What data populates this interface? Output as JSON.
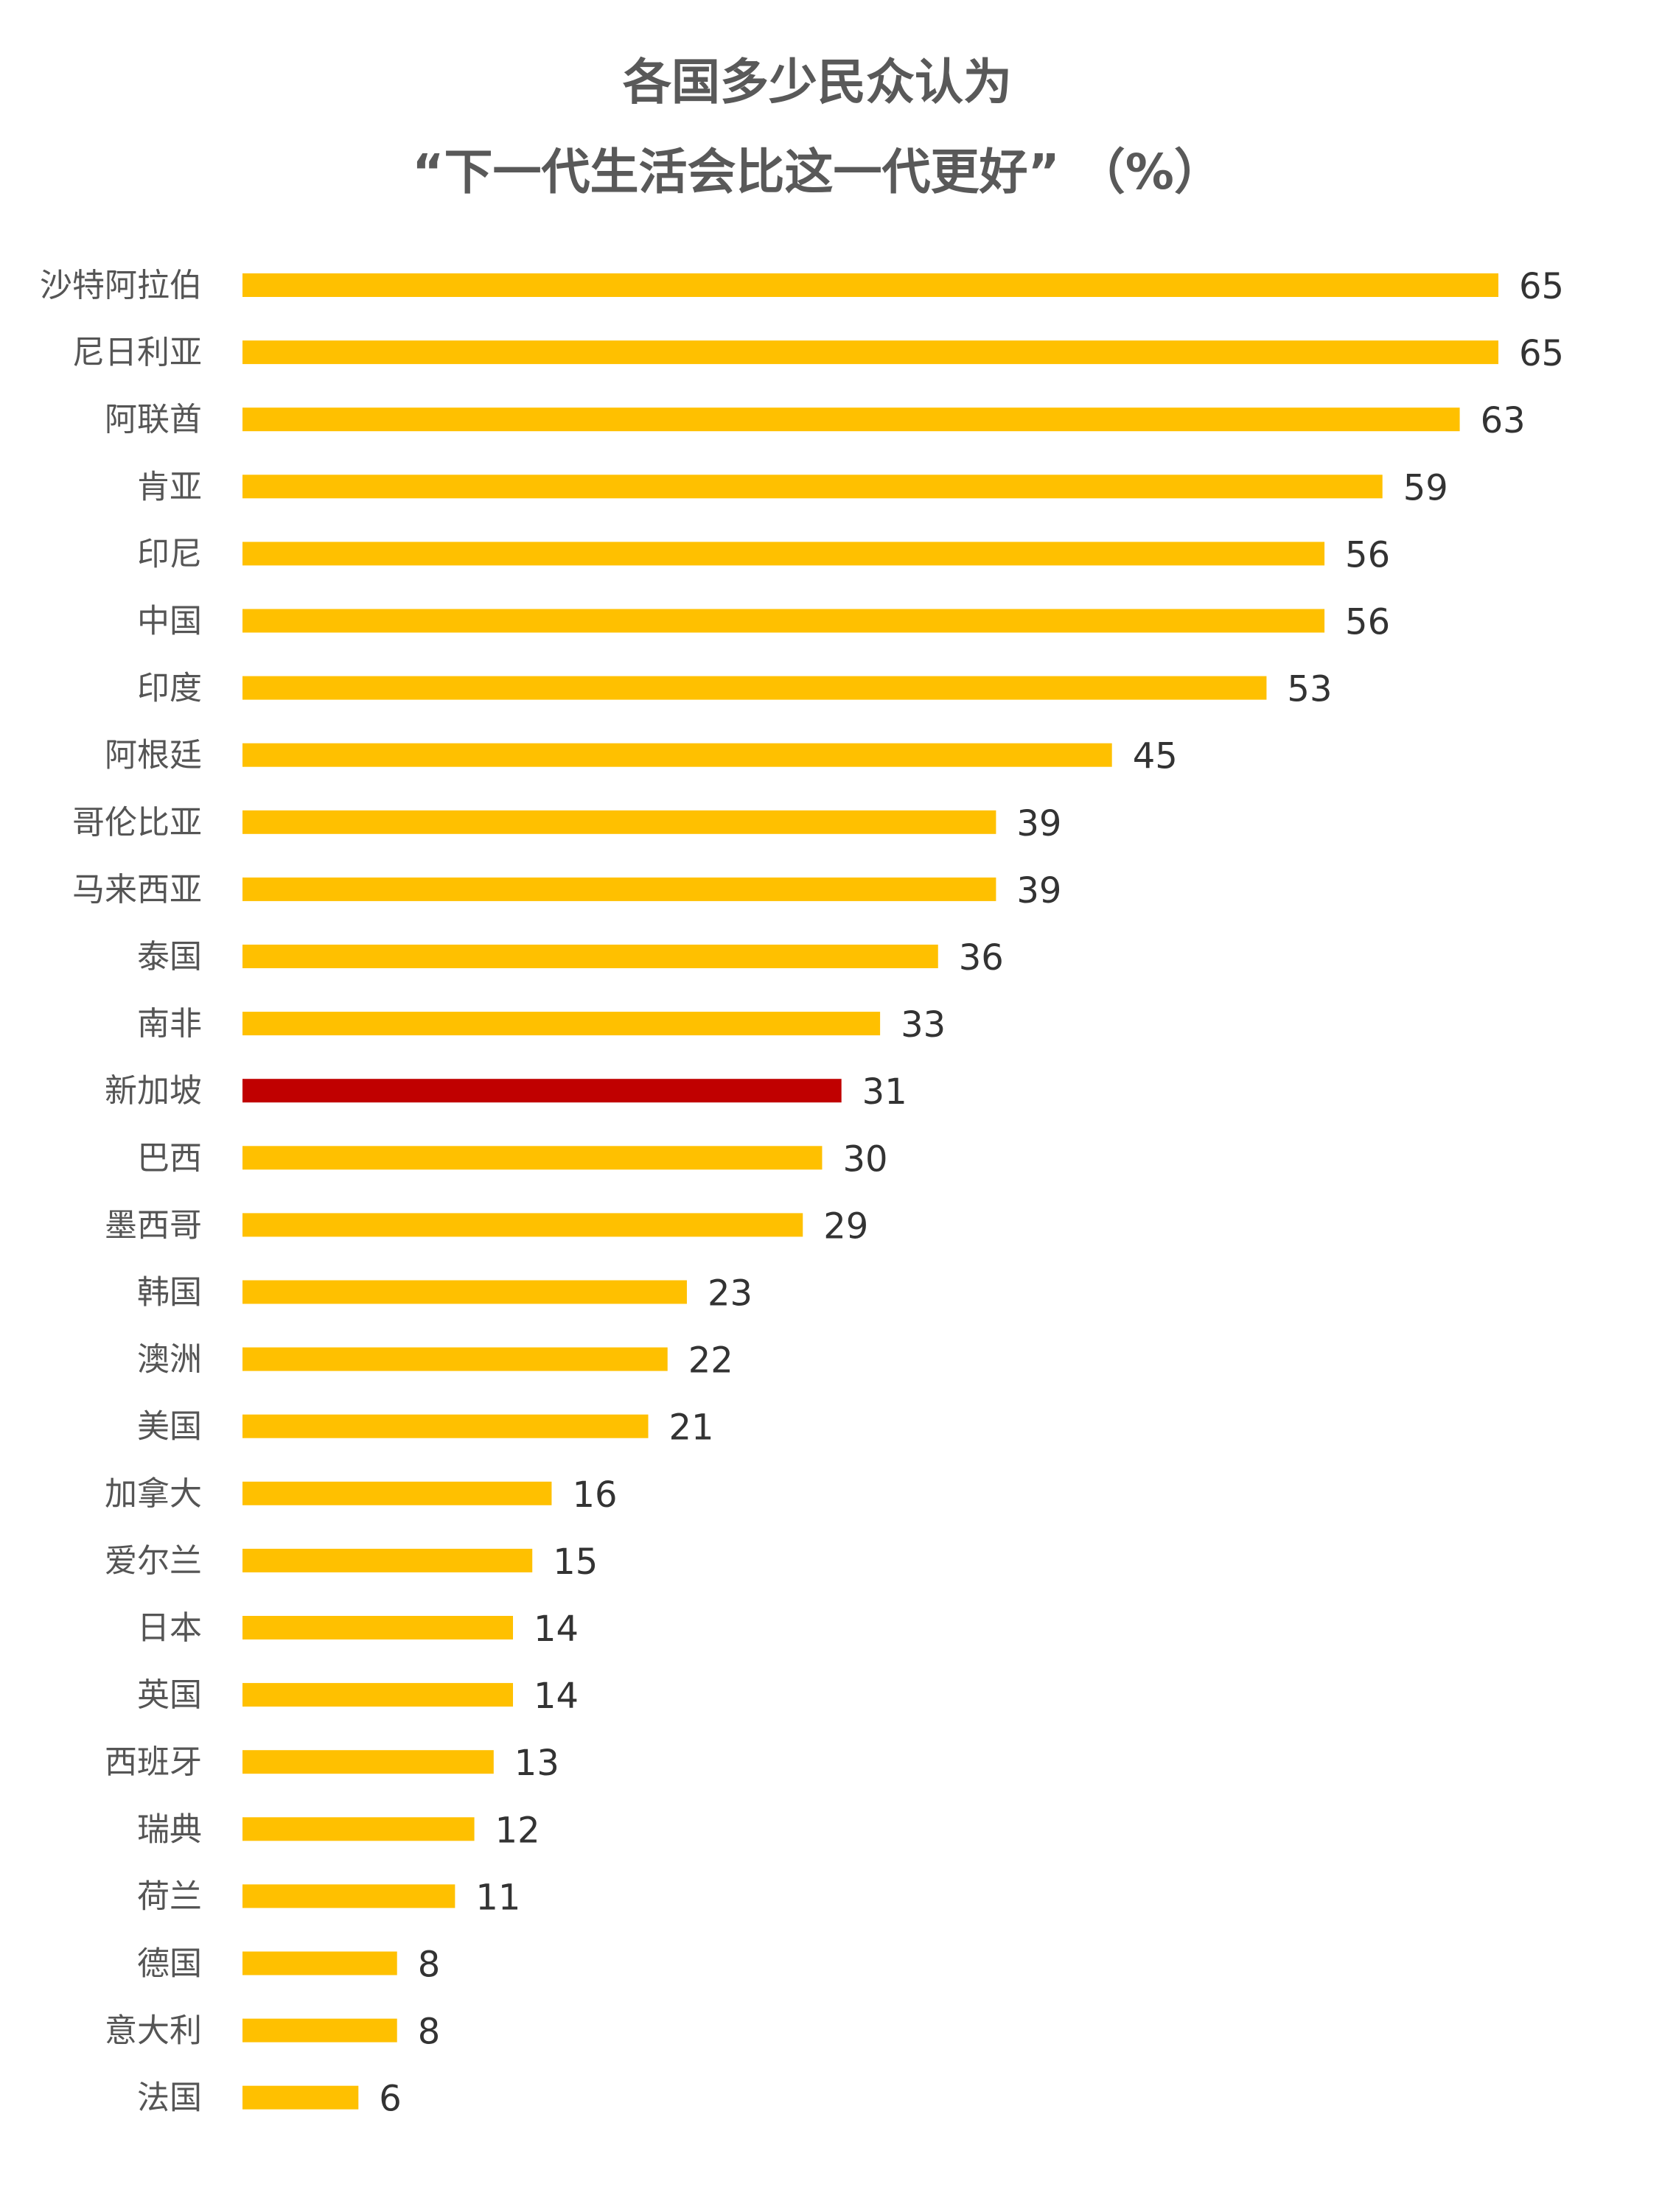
{
  "chart_data": {
    "type": "bar",
    "orientation": "horizontal",
    "title": "各国多少民众认为",
    "subtitle": "“下一代生活会比这一代更好” （%）",
    "xlabel": "",
    "ylabel": "",
    "xlim": [
      0,
      65
    ],
    "grid": false,
    "legend": "none",
    "colors": {
      "default": "#FFC000",
      "highlight": "#C00000",
      "text": "#595959"
    },
    "highlight": "新加坡",
    "categories": [
      "沙特阿拉伯",
      "尼日利亚",
      "阿联酋",
      "肯亚",
      "印尼",
      "中国",
      "印度",
      "阿根廷",
      "哥伦比亚",
      "马来西亚",
      "泰国",
      "南非",
      "新加坡",
      "巴西",
      "墨西哥",
      "韩国",
      "澳洲",
      "美国",
      "加拿大",
      "爱尔兰",
      "日本",
      "英国",
      "西班牙",
      "瑞典",
      "荷兰",
      "德国",
      "意大利",
      "法国"
    ],
    "values": [
      65,
      65,
      63,
      59,
      56,
      56,
      53,
      45,
      39,
      39,
      36,
      33,
      31,
      30,
      29,
      23,
      22,
      21,
      16,
      15,
      14,
      14,
      13,
      12,
      11,
      8,
      8,
      6
    ]
  }
}
